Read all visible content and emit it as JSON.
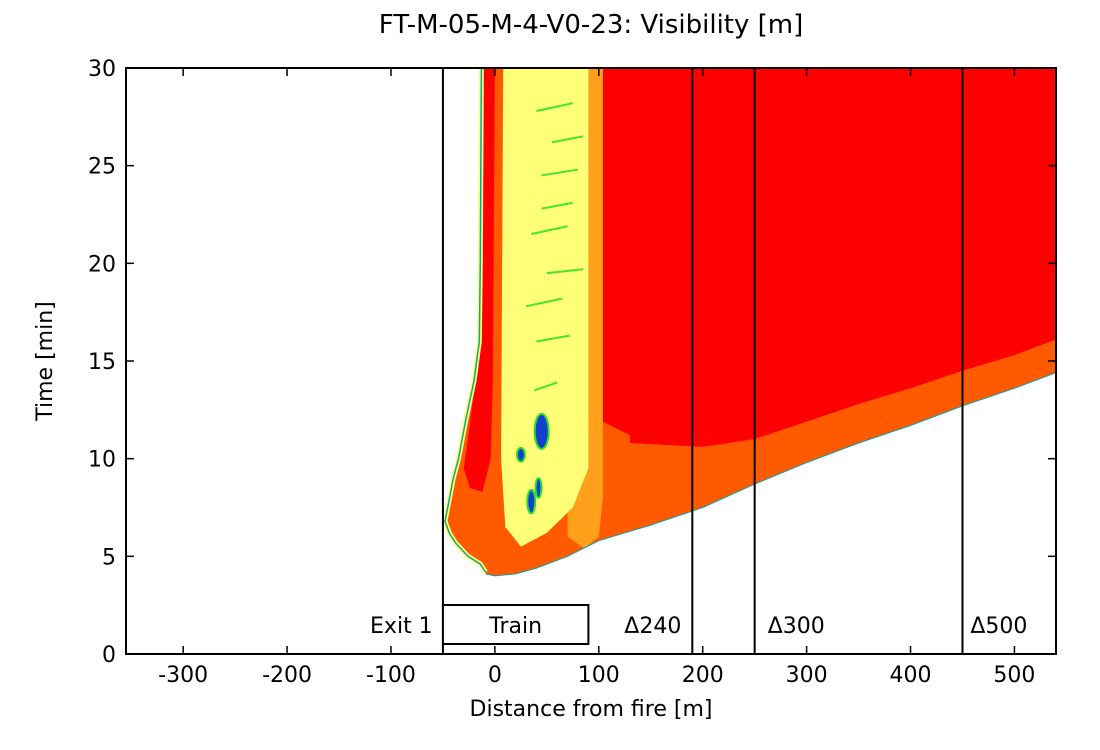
{
  "chart_data": {
    "type": "heatmap",
    "title": "FT-M-05-M-4-V0-23: Visibility [m]",
    "xlabel": "Distance from fire [m]",
    "ylabel": "Time [min]",
    "xlim": [
      -355,
      540
    ],
    "ylim": [
      0,
      30
    ],
    "xticks": [
      -300,
      -200,
      -100,
      0,
      100,
      200,
      300,
      400,
      500
    ],
    "yticks": [
      0,
      5,
      10,
      15,
      20,
      25,
      30
    ],
    "xtick_labels": [
      "-300",
      "-200",
      "-100",
      "0",
      "100",
      "200",
      "300",
      "400",
      "500"
    ],
    "ytick_labels": [
      "0",
      "5",
      "10",
      "15",
      "20",
      "25",
      "30"
    ],
    "vertical_lines_x": [
      -50,
      190,
      250,
      450
    ],
    "train": {
      "label": "Train",
      "x_start": -50,
      "x_end": 90
    },
    "annotations": [
      {
        "text": "Exit 1",
        "x": -90
      },
      {
        "text": "Δ240",
        "x": 152
      },
      {
        "text": "Δ300",
        "x": 290
      },
      {
        "text": "Δ500",
        "x": 485
      }
    ],
    "colors": {
      "red": "#ff0000",
      "orange": "#ff5a00",
      "amber": "#ff9f1a",
      "yellow": "#ffff78",
      "green": "#28e028",
      "teal": "#10a0a0",
      "blue": "#1040d0"
    },
    "regions": {
      "outer_orange_boundary": [
        [
          -9,
          4.1
        ],
        [
          0,
          4.0
        ],
        [
          20,
          4.1
        ],
        [
          40,
          4.4
        ],
        [
          70,
          5.0
        ],
        [
          85,
          5.4
        ],
        [
          100,
          5.8
        ],
        [
          150,
          6.6
        ],
        [
          200,
          7.5
        ],
        [
          250,
          8.7
        ],
        [
          300,
          9.8
        ],
        [
          350,
          10.8
        ],
        [
          400,
          11.7
        ],
        [
          450,
          12.7
        ],
        [
          500,
          13.6
        ],
        [
          540,
          14.4
        ]
      ],
      "far_red_lower_boundary": [
        [
          130,
          10.8
        ],
        [
          200,
          10.6
        ],
        [
          250,
          11.0
        ],
        [
          300,
          11.9
        ],
        [
          350,
          12.8
        ],
        [
          400,
          13.6
        ],
        [
          450,
          14.5
        ],
        [
          500,
          15.3
        ],
        [
          540,
          16.1
        ]
      ],
      "left_plume_boundary": [
        [
          -13,
          30
        ],
        [
          -14,
          20
        ],
        [
          -15,
          16
        ],
        [
          -20,
          14
        ],
        [
          -28,
          12
        ],
        [
          -35,
          10
        ],
        [
          -40,
          9
        ],
        [
          -45,
          7.6
        ],
        [
          -48,
          6.8
        ],
        [
          -44,
          6.2
        ],
        [
          -38,
          5.7
        ],
        [
          -26,
          5.0
        ],
        [
          -14,
          4.6
        ],
        [
          -9,
          4.2
        ]
      ],
      "amber_band_right_edge": [
        [
          50,
          4.8
        ],
        [
          85,
          5.4
        ],
        [
          100,
          6.0
        ],
        [
          100,
          15
        ],
        [
          100,
          30
        ]
      ],
      "yellow_band": {
        "x_start": 8,
        "x_end": 90
      },
      "red_streak": {
        "x_start": -14,
        "x_end": 8
      }
    }
  }
}
